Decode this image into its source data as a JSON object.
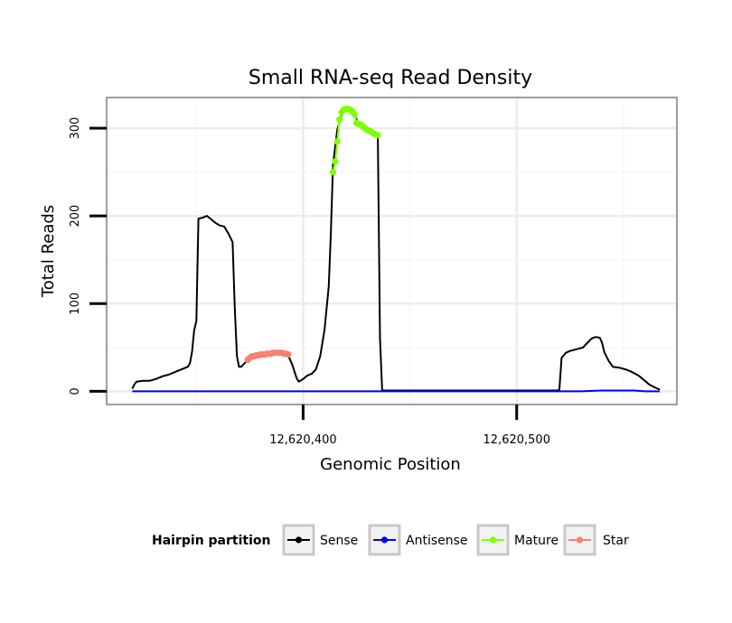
{
  "chart_data": {
    "type": "line",
    "title": "Small RNA-seq Read Density",
    "xlabel": "Genomic Position",
    "ylabel": "Total Reads",
    "xlim": [
      12620308,
      12620575
    ],
    "ylim": [
      -15,
      335
    ],
    "x_ticks": [
      {
        "value": 12620400,
        "label": "12,620,400"
      },
      {
        "value": 12620500,
        "label": "12,620,500"
      }
    ],
    "x_minor_ticks": [
      12620350,
      12620450,
      12620550
    ],
    "y_ticks": [
      {
        "value": 0,
        "label": "0"
      },
      {
        "value": 100,
        "label": "100"
      },
      {
        "value": 200,
        "label": "200"
      },
      {
        "value": 300,
        "label": "300"
      }
    ],
    "y_minor_ticks": [
      50,
      150,
      250
    ],
    "grid": true,
    "legend": {
      "title": "Hairpin partition",
      "position": "bottom",
      "entries": [
        {
          "name": "Sense",
          "color": "#000000"
        },
        {
          "name": "Antisense",
          "color": "#0000ff"
        },
        {
          "name": "Mature",
          "color": "#7fff00"
        },
        {
          "name": "Star",
          "color": "#fa8072"
        }
      ]
    },
    "series": [
      {
        "name": "Sense",
        "color": "#000000",
        "points": [
          [
            12620320,
            3
          ],
          [
            12620321,
            8
          ],
          [
            12620322,
            11
          ],
          [
            12620325,
            12
          ],
          [
            12620328,
            12
          ],
          [
            12620331,
            14
          ],
          [
            12620334,
            17
          ],
          [
            12620337,
            19
          ],
          [
            12620340,
            22
          ],
          [
            12620342,
            24
          ],
          [
            12620344,
            26
          ],
          [
            12620346,
            28
          ],
          [
            12620347,
            32
          ],
          [
            12620348,
            45
          ],
          [
            12620349,
            70
          ],
          [
            12620350,
            80
          ],
          [
            12620351,
            197
          ],
          [
            12620353,
            198
          ],
          [
            12620355,
            200
          ],
          [
            12620357,
            196
          ],
          [
            12620359,
            192
          ],
          [
            12620361,
            189
          ],
          [
            12620363,
            188
          ],
          [
            12620365,
            180
          ],
          [
            12620366,
            175
          ],
          [
            12620367,
            170
          ],
          [
            12620368,
            95
          ],
          [
            12620369,
            40
          ],
          [
            12620370,
            28
          ],
          [
            12620371,
            28
          ],
          [
            12620373,
            33
          ],
          [
            12620375,
            37
          ],
          [
            12620378,
            40
          ],
          [
            12620382,
            42
          ],
          [
            12620386,
            43
          ],
          [
            12620390,
            43
          ],
          [
            12620393,
            41
          ],
          [
            12620395,
            30
          ],
          [
            12620396,
            22
          ],
          [
            12620397,
            15
          ],
          [
            12620398,
            11
          ],
          [
            12620400,
            14
          ],
          [
            12620402,
            18
          ],
          [
            12620404,
            20
          ],
          [
            12620406,
            25
          ],
          [
            12620408,
            40
          ],
          [
            12620410,
            70
          ],
          [
            12620412,
            120
          ],
          [
            12620413,
            180
          ],
          [
            12620414,
            258
          ],
          [
            12620416,
            298
          ],
          [
            12620418,
            316
          ],
          [
            12620420,
            322
          ],
          [
            12620422,
            320
          ],
          [
            12620424,
            314
          ],
          [
            12620426,
            306
          ],
          [
            12620428,
            300
          ],
          [
            12620430,
            296
          ],
          [
            12620432,
            294
          ],
          [
            12620434,
            292
          ],
          [
            12620435,
            290
          ],
          [
            12620436,
            60
          ],
          [
            12620437,
            1
          ],
          [
            12620440,
            1
          ],
          [
            12620460,
            1
          ],
          [
            12620480,
            1
          ],
          [
            12620500,
            1
          ],
          [
            12620519,
            1
          ],
          [
            12620520,
            2
          ],
          [
            12620521,
            38
          ],
          [
            12620523,
            44
          ],
          [
            12620525,
            46
          ],
          [
            12620528,
            48
          ],
          [
            12620531,
            50
          ],
          [
            12620533,
            55
          ],
          [
            12620535,
            60
          ],
          [
            12620537,
            62
          ],
          [
            12620539,
            61
          ],
          [
            12620540,
            55
          ],
          [
            12620541,
            45
          ],
          [
            12620543,
            35
          ],
          [
            12620545,
            28
          ],
          [
            12620548,
            27
          ],
          [
            12620551,
            25
          ],
          [
            12620554,
            22
          ],
          [
            12620557,
            18
          ],
          [
            12620560,
            12
          ],
          [
            12620562,
            8
          ],
          [
            12620565,
            4
          ],
          [
            12620567,
            2
          ]
        ]
      },
      {
        "name": "Antisense",
        "color": "#0000ff",
        "points": [
          [
            12620320,
            0
          ],
          [
            12620400,
            0
          ],
          [
            12620500,
            0
          ],
          [
            12620530,
            0
          ],
          [
            12620540,
            1
          ],
          [
            12620555,
            1
          ],
          [
            12620560,
            0
          ],
          [
            12620567,
            0
          ]
        ]
      },
      {
        "name": "Mature",
        "color": "#7fff00",
        "points": [
          [
            12620414,
            250
          ],
          [
            12620415,
            262
          ],
          [
            12620416,
            285
          ],
          [
            12620417,
            310
          ],
          [
            12620418,
            318
          ],
          [
            12620419,
            321
          ],
          [
            12620420,
            322
          ],
          [
            12620421,
            322
          ],
          [
            12620422,
            321
          ],
          [
            12620423,
            319
          ],
          [
            12620424,
            316
          ],
          [
            12620425,
            306
          ],
          [
            12620426,
            305
          ],
          [
            12620427,
            304
          ],
          [
            12620428,
            302
          ],
          [
            12620429,
            300
          ],
          [
            12620430,
            298
          ],
          [
            12620431,
            297
          ],
          [
            12620432,
            296
          ],
          [
            12620433,
            294
          ],
          [
            12620434,
            293
          ],
          [
            12620435,
            292
          ]
        ]
      },
      {
        "name": "Star",
        "color": "#fa8072",
        "points": [
          [
            12620374,
            36
          ],
          [
            12620375,
            38
          ],
          [
            12620376,
            40
          ],
          [
            12620377,
            40
          ],
          [
            12620378,
            41
          ],
          [
            12620379,
            41
          ],
          [
            12620380,
            42
          ],
          [
            12620381,
            42
          ],
          [
            12620382,
            42
          ],
          [
            12620383,
            43
          ],
          [
            12620384,
            43
          ],
          [
            12620385,
            43
          ],
          [
            12620386,
            44
          ],
          [
            12620387,
            44
          ],
          [
            12620388,
            44
          ],
          [
            12620389,
            44
          ],
          [
            12620390,
            44
          ],
          [
            12620391,
            43
          ],
          [
            12620392,
            43
          ],
          [
            12620393,
            42
          ]
        ]
      }
    ]
  }
}
